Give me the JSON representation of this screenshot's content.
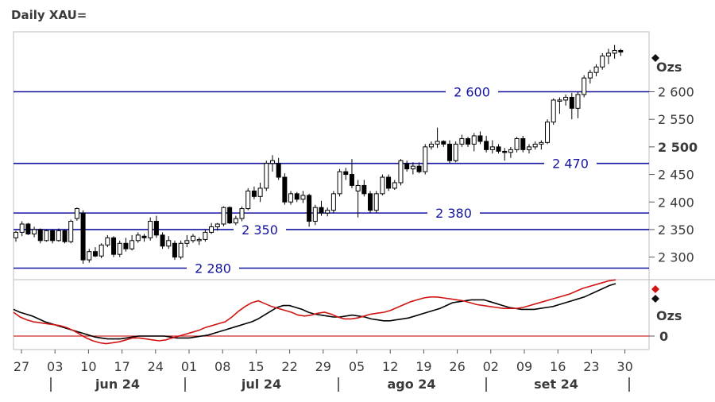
{
  "title": "Daily XAU=",
  "y_unit_main": "Ozs",
  "y_unit_osc": "Ozs",
  "colors": {
    "frame": "#bdbdbd",
    "level_line": "#1414a0",
    "level_text": "#1414a0",
    "candle": "#000000",
    "osc_black": "#000000",
    "osc_red": "#d01414",
    "zero_line": "#cc2b2b",
    "axis_text": "#3a3a3a"
  },
  "chart_data": [
    {
      "type": "candlestick",
      "ylim": [
        2270,
        2690
      ],
      "yticks": [
        {
          "value": 2300,
          "label": "2 300"
        },
        {
          "value": 2350,
          "label": "2 350"
        },
        {
          "value": 2400,
          "label": "2 400"
        },
        {
          "value": 2450,
          "label": "2 450"
        },
        {
          "value": 2500,
          "label": "2 500"
        },
        {
          "value": 2550,
          "label": "2 550"
        },
        {
          "value": 2600,
          "label": "2 600"
        }
      ],
      "x_ticks": [
        "27",
        "03",
        "10",
        "17",
        "24",
        "01",
        "08",
        "15",
        "22",
        "29",
        "05",
        "12",
        "19",
        "26",
        "02",
        "09",
        "16",
        "23",
        "30"
      ],
      "months": [
        "jun 24",
        "jul 24",
        "ago 24",
        "set 24"
      ],
      "levels": [
        {
          "value": 2600,
          "label": "2 600"
        },
        {
          "value": 2470,
          "label": "2 470"
        },
        {
          "value": 2380,
          "label": "2 380"
        },
        {
          "value": 2350,
          "label": "2 350"
        },
        {
          "value": 2280,
          "label": "2 280"
        }
      ],
      "ohlc": [
        [
          2335,
          2348,
          2328,
          2345
        ],
        [
          2345,
          2365,
          2338,
          2360
        ],
        [
          2360,
          2362,
          2340,
          2342
        ],
        [
          2342,
          2355,
          2336,
          2350
        ],
        [
          2350,
          2352,
          2325,
          2330
        ],
        [
          2330,
          2350,
          2328,
          2348
        ],
        [
          2348,
          2350,
          2325,
          2330
        ],
        [
          2330,
          2352,
          2328,
          2348
        ],
        [
          2348,
          2350,
          2325,
          2328
        ],
        [
          2328,
          2368,
          2325,
          2365
        ],
        [
          2370,
          2390,
          2366,
          2388
        ],
        [
          2380,
          2385,
          2288,
          2295
        ],
        [
          2295,
          2315,
          2290,
          2310
        ],
        [
          2310,
          2318,
          2300,
          2302
        ],
        [
          2302,
          2325,
          2298,
          2322
        ],
        [
          2322,
          2340,
          2318,
          2335
        ],
        [
          2335,
          2338,
          2300,
          2305
        ],
        [
          2305,
          2330,
          2300,
          2325
        ],
        [
          2325,
          2335,
          2310,
          2315
        ],
        [
          2315,
          2340,
          2312,
          2330
        ],
        [
          2330,
          2345,
          2326,
          2340
        ],
        [
          2338,
          2342,
          2328,
          2335
        ],
        [
          2335,
          2372,
          2330,
          2365
        ],
        [
          2365,
          2375,
          2335,
          2340
        ],
        [
          2340,
          2345,
          2315,
          2320
        ],
        [
          2320,
          2338,
          2315,
          2330
        ],
        [
          2325,
          2330,
          2295,
          2300
        ],
        [
          2300,
          2330,
          2296,
          2325
        ],
        [
          2325,
          2340,
          2318,
          2330
        ],
        [
          2330,
          2342,
          2326,
          2338
        ],
        [
          2330,
          2336,
          2322,
          2332
        ],
        [
          2332,
          2350,
          2328,
          2345
        ],
        [
          2345,
          2362,
          2342,
          2355
        ],
        [
          2355,
          2362,
          2348,
          2360
        ],
        [
          2360,
          2392,
          2356,
          2390
        ],
        [
          2390,
          2392,
          2360,
          2362
        ],
        [
          2362,
          2375,
          2358,
          2370
        ],
        [
          2370,
          2392,
          2365,
          2388
        ],
        [
          2388,
          2425,
          2385,
          2420
        ],
        [
          2420,
          2428,
          2405,
          2410
        ],
        [
          2410,
          2435,
          2400,
          2425
        ],
        [
          2425,
          2475,
          2420,
          2470
        ],
        [
          2470,
          2485,
          2455,
          2475
        ],
        [
          2470,
          2480,
          2440,
          2445
        ],
        [
          2445,
          2452,
          2395,
          2400
        ],
        [
          2400,
          2420,
          2395,
          2415
        ],
        [
          2415,
          2418,
          2400,
          2405
        ],
        [
          2405,
          2420,
          2398,
          2412
        ],
        [
          2412,
          2415,
          2355,
          2365
        ],
        [
          2365,
          2395,
          2358,
          2390
        ],
        [
          2390,
          2402,
          2375,
          2380
        ],
        [
          2380,
          2390,
          2374,
          2385
        ],
        [
          2385,
          2420,
          2380,
          2415
        ],
        [
          2415,
          2460,
          2410,
          2455
        ],
        [
          2455,
          2462,
          2440,
          2450
        ],
        [
          2450,
          2478,
          2425,
          2430
        ],
        [
          2420,
          2440,
          2372,
          2430
        ],
        [
          2430,
          2440,
          2410,
          2415
        ],
        [
          2415,
          2420,
          2380,
          2385
        ],
        [
          2385,
          2420,
          2380,
          2415
        ],
        [
          2415,
          2450,
          2412,
          2445
        ],
        [
          2445,
          2450,
          2420,
          2425
        ],
        [
          2425,
          2440,
          2422,
          2435
        ],
        [
          2435,
          2478,
          2430,
          2475
        ],
        [
          2470,
          2475,
          2455,
          2460
        ],
        [
          2460,
          2472,
          2450,
          2465
        ],
        [
          2465,
          2472,
          2452,
          2455
        ],
        [
          2455,
          2505,
          2450,
          2500
        ],
        [
          2500,
          2510,
          2495,
          2505
        ],
        [
          2505,
          2535,
          2498,
          2510
        ],
        [
          2510,
          2512,
          2500,
          2505
        ],
        [
          2505,
          2512,
          2470,
          2475
        ],
        [
          2475,
          2510,
          2472,
          2505
        ],
        [
          2505,
          2522,
          2500,
          2515
        ],
        [
          2515,
          2518,
          2500,
          2505
        ],
        [
          2505,
          2525,
          2492,
          2520
        ],
        [
          2520,
          2528,
          2505,
          2510
        ],
        [
          2510,
          2520,
          2490,
          2495
        ],
        [
          2495,
          2512,
          2488,
          2500
        ],
        [
          2500,
          2505,
          2488,
          2492
        ],
        [
          2492,
          2498,
          2475,
          2490
        ],
        [
          2490,
          2500,
          2480,
          2495
        ],
        [
          2495,
          2518,
          2490,
          2515
        ],
        [
          2515,
          2520,
          2490,
          2495
        ],
        [
          2495,
          2505,
          2488,
          2500
        ],
        [
          2500,
          2510,
          2495,
          2505
        ],
        [
          2505,
          2512,
          2495,
          2508
        ],
        [
          2508,
          2550,
          2505,
          2545
        ],
        [
          2545,
          2588,
          2540,
          2585
        ],
        [
          2585,
          2590,
          2560,
          2585
        ],
        [
          2585,
          2595,
          2575,
          2590
        ],
        [
          2590,
          2598,
          2550,
          2570
        ],
        [
          2570,
          2600,
          2552,
          2595
        ],
        [
          2595,
          2630,
          2590,
          2625
        ],
        [
          2625,
          2640,
          2615,
          2635
        ],
        [
          2635,
          2650,
          2628,
          2645
        ],
        [
          2645,
          2670,
          2640,
          2665
        ],
        [
          2665,
          2678,
          2650,
          2670
        ],
        [
          2670,
          2685,
          2660,
          2675
        ],
        [
          2675,
          2678,
          2665,
          2672
        ]
      ]
    },
    {
      "type": "line",
      "ylim": [
        -22,
        70
      ],
      "yticks": [
        {
          "value": 0,
          "label": "0"
        }
      ],
      "series": [
        {
          "color": "#000000",
          "values": [
            28,
            25,
            23,
            21,
            18,
            15,
            13,
            11,
            9,
            7,
            5,
            3,
            1,
            -1,
            -2,
            -3,
            -3,
            -3,
            -2,
            -1,
            0,
            0,
            0,
            0,
            0,
            -1,
            -2,
            -2,
            -2,
            -1,
            0,
            1,
            3,
            5,
            7,
            9,
            11,
            13,
            15,
            18,
            22,
            26,
            30,
            32,
            32,
            30,
            28,
            25,
            23,
            22,
            21,
            20,
            20,
            21,
            22,
            21,
            20,
            18,
            17,
            16,
            16,
            17,
            18,
            19,
            21,
            23,
            25,
            27,
            29,
            32,
            35,
            36,
            37,
            38,
            38,
            38,
            36,
            34,
            32,
            30,
            29,
            28,
            28,
            28,
            29,
            30,
            31,
            33,
            35,
            37,
            39,
            41,
            44,
            47,
            50,
            53,
            55
          ]
        },
        {
          "color": "#d01414",
          "values": [
            25,
            20,
            17,
            15,
            14,
            13,
            12,
            11,
            9,
            6,
            2,
            -2,
            -5,
            -7,
            -8,
            -7,
            -6,
            -4,
            -2,
            -2,
            -3,
            -4,
            -5,
            -4,
            -2,
            0,
            2,
            4,
            6,
            9,
            11,
            13,
            15,
            20,
            26,
            31,
            35,
            37,
            34,
            31,
            29,
            27,
            25,
            22,
            21,
            22,
            24,
            25,
            23,
            20,
            18,
            18,
            19,
            21,
            23,
            24,
            25,
            27,
            30,
            33,
            36,
            38,
            40,
            41,
            41,
            40,
            39,
            38,
            37,
            35,
            33,
            32,
            31,
            30,
            29,
            29,
            29,
            30,
            32,
            34,
            36,
            38,
            40,
            42,
            44,
            47,
            50,
            52,
            54,
            56,
            58,
            59
          ]
        }
      ]
    }
  ]
}
